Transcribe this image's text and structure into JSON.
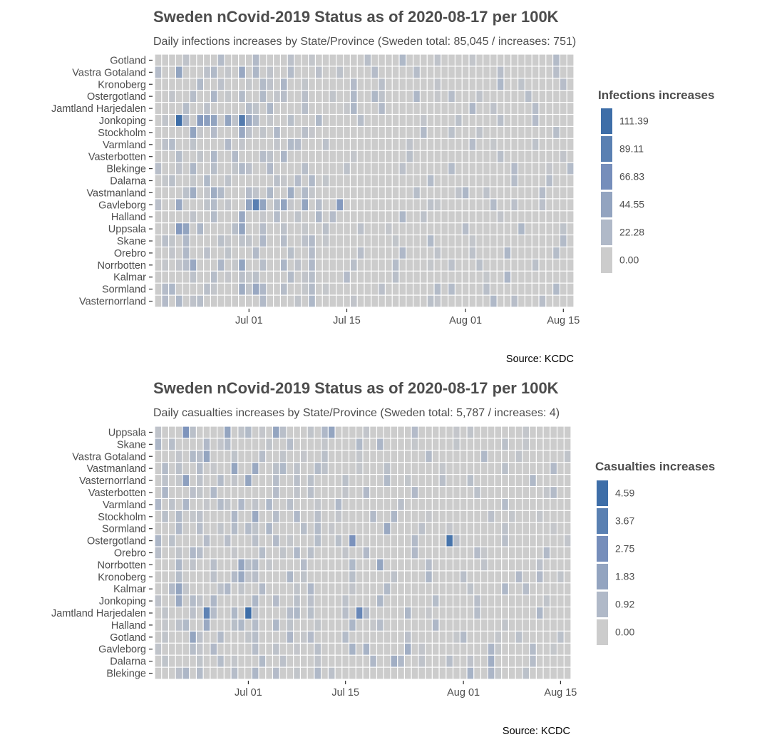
{
  "chart_data": [
    {
      "type": "heatmap",
      "title": "Sweden nCovid-2019 Status as of 2020-08-17 per 100K",
      "subtitle": "Daily infections increases by State/Province (Sweden total: 85,045 / increases: 751)",
      "caption": "Source: KCDC",
      "x_start": "2020-06-18",
      "x_end": "2020-08-16",
      "x_ticks": [
        "Jul 01",
        "Jul 15",
        "Aug 01",
        "Aug 15"
      ],
      "x_tick_dates": [
        "2020-07-01",
        "2020-07-15",
        "2020-08-01",
        "2020-08-15"
      ],
      "rows": [
        "Gotland",
        "Vastra Gotaland",
        "Kronoberg",
        "Ostergotland",
        "Jamtland Harjedalen",
        "Jonkoping",
        "Stockholm",
        "Varmland",
        "Vasterbotten",
        "Blekinge",
        "Dalarna",
        "Vastmanland",
        "Gavleborg",
        "Halland",
        "Uppsala",
        "Skane",
        "Orebro",
        "Norrbotten",
        "Kalmar",
        "Sormland",
        "Vasternorrland"
      ],
      "legend": {
        "title": "Infections increases",
        "breaks": [
          "111.39",
          "89.11",
          "66.83",
          "44.55",
          "22.28",
          "0.00"
        ],
        "colors": [
          "#3e6ea8",
          "#5a80b2",
          "#768ebb",
          "#93a4c0",
          "#b0b9c8",
          "#cccccc"
        ]
      },
      "level_note": "cells are colored on the legend scale; values approximate",
      "highlights": [
        {
          "row": "Jonkoping",
          "date": "2020-06-21",
          "value": 111.39
        },
        {
          "row": "Jonkoping",
          "date": "2020-06-24",
          "value": 55
        },
        {
          "row": "Jonkoping",
          "date": "2020-06-25",
          "value": 50
        },
        {
          "row": "Jonkoping",
          "date": "2020-06-26",
          "value": 45
        },
        {
          "row": "Jonkoping",
          "date": "2020-06-28",
          "value": 45
        },
        {
          "row": "Jonkoping",
          "date": "2020-06-30",
          "value": 95
        },
        {
          "row": "Jonkoping",
          "date": "2020-07-01",
          "value": 40
        },
        {
          "row": "Vastra Gotaland",
          "date": "2020-06-21",
          "value": 45
        },
        {
          "row": "Vastra Gotaland",
          "date": "2020-06-30",
          "value": 40
        },
        {
          "row": "Gavleborg",
          "date": "2020-07-02",
          "value": 90
        },
        {
          "row": "Gavleborg",
          "date": "2020-07-01",
          "value": 45
        },
        {
          "row": "Gavleborg",
          "date": "2020-07-03",
          "value": 45
        },
        {
          "row": "Gavleborg",
          "date": "2020-07-06",
          "value": 45
        },
        {
          "row": "Gavleborg",
          "date": "2020-07-09",
          "value": 45
        },
        {
          "row": "Gavleborg",
          "date": "2020-07-14",
          "value": 55
        },
        {
          "row": "Gavleborg",
          "date": "2020-06-21",
          "value": 40
        },
        {
          "row": "Uppsala",
          "date": "2020-06-21",
          "value": 55
        },
        {
          "row": "Uppsala",
          "date": "2020-06-22",
          "value": 45
        },
        {
          "row": "Uppsala",
          "date": "2020-06-30",
          "value": 45
        },
        {
          "row": "Stockholm",
          "date": "2020-06-23",
          "value": 45
        },
        {
          "row": "Stockholm",
          "date": "2020-06-30",
          "value": 40
        },
        {
          "row": "Halland",
          "date": "2020-06-30",
          "value": 40
        },
        {
          "row": "Norrbotten",
          "date": "2020-06-23",
          "value": 40
        },
        {
          "row": "Norrbotten",
          "date": "2020-06-30",
          "value": 45
        },
        {
          "row": "Vastmanland",
          "date": "2020-06-23",
          "value": 35
        },
        {
          "row": "Vastmanland",
          "date": "2020-06-26",
          "value": 35
        },
        {
          "row": "Vastmanland",
          "date": "2020-07-07",
          "value": 35
        },
        {
          "row": "Sormland",
          "date": "2020-07-02",
          "value": 40
        },
        {
          "row": "Sormland",
          "date": "2020-06-30",
          "value": 35
        }
      ]
    },
    {
      "type": "heatmap",
      "title": "Sweden nCovid-2019 Status as of 2020-08-17 per 100K",
      "subtitle": "Daily casualties increases by State/Province (Sweden total: 5,787 / increases: 4)",
      "caption": "Source: KCDC",
      "x_start": "2020-06-18",
      "x_end": "2020-08-16",
      "x_ticks": [
        "Jul 01",
        "Jul 15",
        "Aug 01",
        "Aug 15"
      ],
      "x_tick_dates": [
        "2020-07-01",
        "2020-07-15",
        "2020-08-01",
        "2020-08-15"
      ],
      "rows": [
        "Uppsala",
        "Skane",
        "Vastra Gotaland",
        "Vastmanland",
        "Vasternorrland",
        "Vasterbotten",
        "Varmland",
        "Stockholm",
        "Sormland",
        "Ostergotland",
        "Orebro",
        "Norrbotten",
        "Kronoberg",
        "Kalmar",
        "Jonkoping",
        "Jamtland Harjedalen",
        "Halland",
        "Gotland",
        "Gavleborg",
        "Dalarna",
        "Blekinge"
      ],
      "legend": {
        "title": "Casualties increases",
        "breaks": [
          "4.59",
          "3.67",
          "2.75",
          "1.83",
          "0.92",
          "0.00"
        ],
        "colors": [
          "#3e6ea8",
          "#5a80b2",
          "#768ebb",
          "#93a4c0",
          "#b0b9c8",
          "#cccccc"
        ]
      },
      "level_note": "cells are colored on the legend scale; values approximate",
      "highlights": [
        {
          "row": "Jamtland Harjedalen",
          "date": "2020-07-01",
          "value": 4.59
        },
        {
          "row": "Jamtland Harjedalen",
          "date": "2020-06-25",
          "value": 3.5
        },
        {
          "row": "Jamtland Harjedalen",
          "date": "2020-07-17",
          "value": 3.2
        },
        {
          "row": "Ostergotland",
          "date": "2020-07-30",
          "value": 4.3
        },
        {
          "row": "Ostergotland",
          "date": "2020-07-16",
          "value": 2.6
        },
        {
          "row": "Uppsala",
          "date": "2020-06-22",
          "value": 2.5
        },
        {
          "row": "Uppsala",
          "date": "2020-06-28",
          "value": 1.8
        },
        {
          "row": "Uppsala",
          "date": "2020-07-05",
          "value": 1.8
        },
        {
          "row": "Uppsala",
          "date": "2020-07-13",
          "value": 1.8
        },
        {
          "row": "Vasternorrland",
          "date": "2020-06-22",
          "value": 2.0
        },
        {
          "row": "Vasternorrland",
          "date": "2020-07-01",
          "value": 1.8
        },
        {
          "row": "Vastra Gotaland",
          "date": "2020-06-25",
          "value": 1.8
        },
        {
          "row": "Vastmanland",
          "date": "2020-06-29",
          "value": 1.8
        },
        {
          "row": "Vastmanland",
          "date": "2020-07-02",
          "value": 1.6
        },
        {
          "row": "Norrbotten",
          "date": "2020-06-30",
          "value": 1.8
        },
        {
          "row": "Norrbotten",
          "date": "2020-07-20",
          "value": 1.8
        },
        {
          "row": "Kalmar",
          "date": "2020-06-21",
          "value": 1.8
        },
        {
          "row": "Jonkoping",
          "date": "2020-06-21",
          "value": 1.6
        },
        {
          "row": "Gotland",
          "date": "2020-06-23",
          "value": 1.8
        },
        {
          "row": "Halland",
          "date": "2020-06-25",
          "value": 1.6
        },
        {
          "row": "Stockholm",
          "date": "2020-07-02",
          "value": 1.6
        },
        {
          "row": "Sormland",
          "date": "2020-07-21",
          "value": 1.6
        },
        {
          "row": "Kronoberg",
          "date": "2020-06-30",
          "value": 1.6
        },
        {
          "row": "Dalarna",
          "date": "2020-07-22",
          "value": 1.4
        },
        {
          "row": "Dalarna",
          "date": "2020-08-05",
          "value": 1.4
        },
        {
          "row": "Gavleborg",
          "date": "2020-07-24",
          "value": 1.4
        },
        {
          "row": "Gavleborg",
          "date": "2020-07-16",
          "value": 1.2
        },
        {
          "row": "Gavleborg",
          "date": "2020-07-18",
          "value": 1.2
        },
        {
          "row": "Blekinge",
          "date": "2020-06-22",
          "value": 1.0
        },
        {
          "row": "Blekinge",
          "date": "2020-08-02",
          "value": 1.2
        }
      ]
    }
  ]
}
